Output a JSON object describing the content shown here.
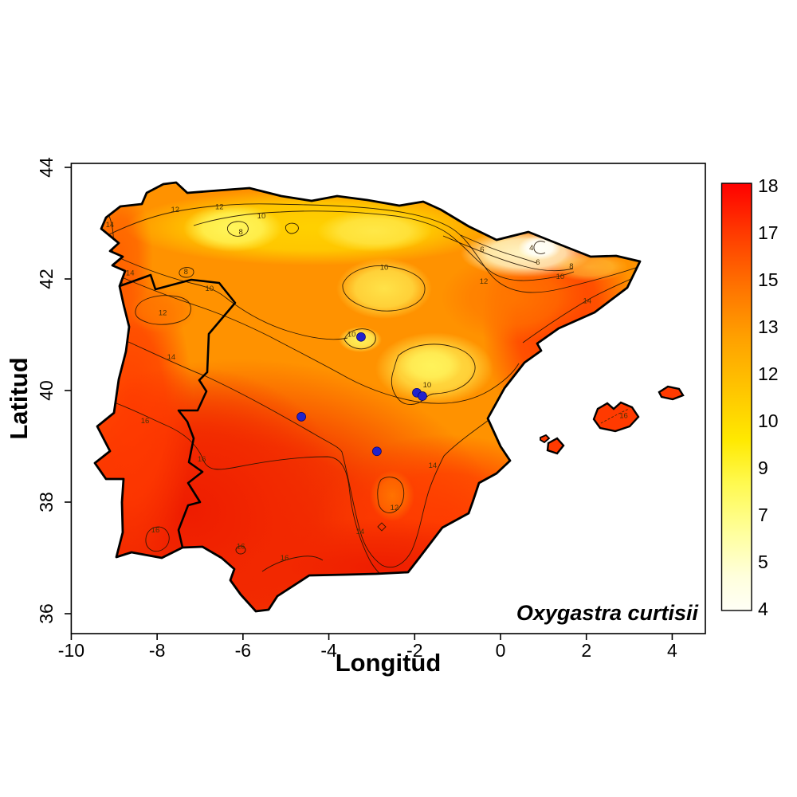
{
  "figure": {
    "xlabel": "Longitud",
    "ylabel": "Latitud",
    "species_annotation": "Oxygastra curtisii"
  },
  "axes": {
    "x_ticks": [
      -10,
      -8,
      -6,
      -4,
      -2,
      0,
      2,
      4
    ],
    "y_ticks": [
      44,
      42,
      40,
      38,
      36
    ]
  },
  "colorbar": {
    "value_min": 4,
    "value_max": 18,
    "tick_labels_top_to_bottom": [
      "18",
      "17",
      "15",
      "13",
      "12",
      "10",
      "9",
      "7",
      "5",
      "4"
    ],
    "gradient_bottom_to_top": [
      "#FFFFF6",
      "#FFFFDC",
      "#FFFF9E",
      "#FFF94E",
      "#FFE900",
      "#FFC400",
      "#FFA000",
      "#FF7200",
      "#FF3C00",
      "#FF0000"
    ]
  },
  "map_data": {
    "type": "filled-contour-map",
    "region": "Iberian Peninsula",
    "variable_range": [
      4,
      18
    ],
    "contour_levels": [
      4,
      6,
      8,
      10,
      12,
      14,
      16
    ],
    "contour_labels": [
      {
        "v": "14",
        "lon": -9.1,
        "lat": 42.97
      },
      {
        "v": "14",
        "lon": -8.63,
        "lat": 42.11
      },
      {
        "v": "12",
        "lon": -7.58,
        "lat": 43.24
      },
      {
        "v": "12",
        "lon": -6.55,
        "lat": 43.29
      },
      {
        "v": "10",
        "lon": -5.57,
        "lat": 43.13
      },
      {
        "v": "8",
        "lon": -6.05,
        "lat": 42.84
      },
      {
        "v": "8",
        "lon": -7.33,
        "lat": 42.13
      },
      {
        "v": "10",
        "lon": -6.78,
        "lat": 41.83
      },
      {
        "v": "12",
        "lon": -7.87,
        "lat": 41.39
      },
      {
        "v": "14",
        "lon": -7.67,
        "lat": 40.6
      },
      {
        "v": "10",
        "lon": -2.71,
        "lat": 42.21
      },
      {
        "v": "10",
        "lon": -3.47,
        "lat": 41.01
      },
      {
        "v": "10",
        "lon": -1.71,
        "lat": 40.1
      },
      {
        "v": "12",
        "lon": -0.39,
        "lat": 41.96
      },
      {
        "v": "6",
        "lon": -0.43,
        "lat": 42.53
      },
      {
        "v": "4",
        "lon": 0.72,
        "lat": 42.56
      },
      {
        "v": "6",
        "lon": 0.87,
        "lat": 42.3
      },
      {
        "v": "8",
        "lon": 1.65,
        "lat": 42.23
      },
      {
        "v": "10",
        "lon": 1.39,
        "lat": 42.04
      },
      {
        "v": "14",
        "lon": 2.02,
        "lat": 41.61
      },
      {
        "v": "16",
        "lon": -8.28,
        "lat": 39.46
      },
      {
        "v": "16",
        "lon": -6.96,
        "lat": 38.77
      },
      {
        "v": "14",
        "lon": -1.58,
        "lat": 38.66
      },
      {
        "v": "12",
        "lon": -2.47,
        "lat": 37.9
      },
      {
        "v": "14",
        "lon": -3.27,
        "lat": 37.47
      },
      {
        "v": "16",
        "lon": -8.04,
        "lat": 37.5
      },
      {
        "v": "16",
        "lon": -6.05,
        "lat": 37.21
      },
      {
        "v": "16",
        "lon": -5.03,
        "lat": 37.0
      },
      {
        "v": "16",
        "lon": 2.87,
        "lat": 39.55
      }
    ],
    "occurrence_points": [
      {
        "lon": -3.25,
        "lat": 40.96
      },
      {
        "lon": -1.95,
        "lat": 39.96
      },
      {
        "lon": -1.82,
        "lat": 39.9
      },
      {
        "lon": -4.64,
        "lat": 39.53
      },
      {
        "lon": -2.88,
        "lat": 38.91
      }
    ],
    "point_color": "#2222CC"
  }
}
